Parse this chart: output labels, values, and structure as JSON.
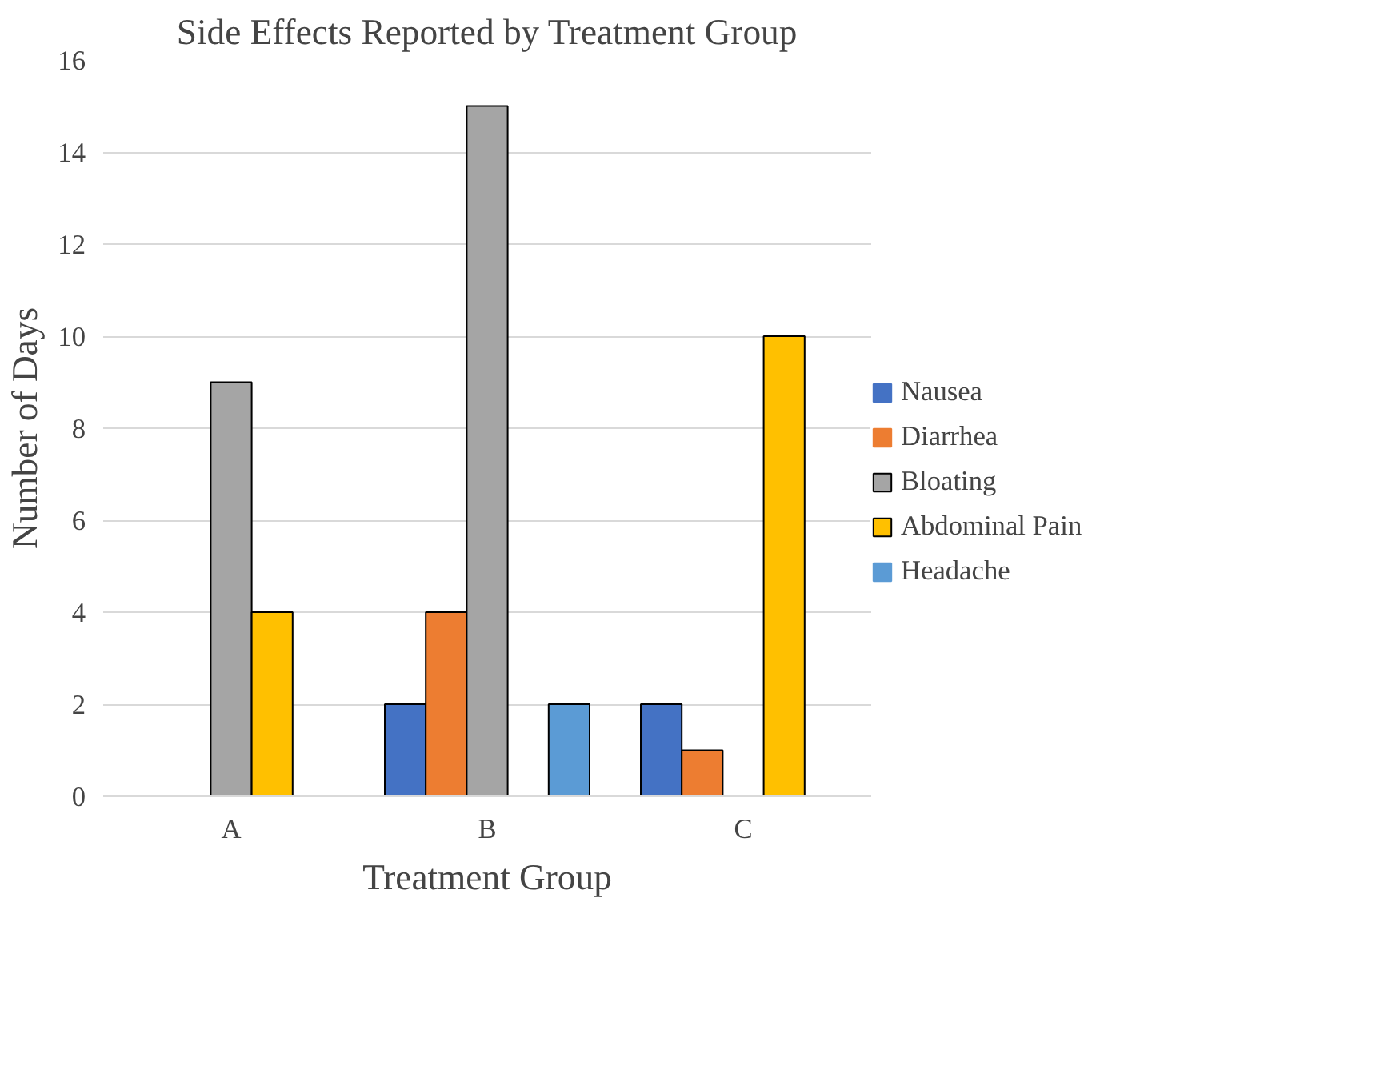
{
  "chart_data": {
    "type": "bar",
    "title": "Side Effects Reported by Treatment Group",
    "xlabel": "Treatment Group",
    "ylabel": "Number of Days",
    "categories": [
      "A",
      "B",
      "C"
    ],
    "series": [
      {
        "name": "Nausea",
        "color": "#4472c4",
        "values": [
          0,
          2,
          2
        ]
      },
      {
        "name": "Diarrhea",
        "color": "#ed7d31",
        "values": [
          0,
          4,
          1
        ]
      },
      {
        "name": "Bloating",
        "color": "#a5a5a5",
        "values": [
          9,
          15,
          0
        ]
      },
      {
        "name": "Abdominal Pain",
        "color": "#ffc000",
        "values": [
          4,
          0,
          10
        ]
      },
      {
        "name": "Headache",
        "color": "#5b9bd5",
        "values": [
          0,
          2,
          0
        ]
      }
    ],
    "ylim": [
      0,
      16
    ],
    "yticks": [
      0,
      2,
      4,
      6,
      8,
      10,
      12,
      14,
      16
    ],
    "grid": "y",
    "legend": "right"
  }
}
